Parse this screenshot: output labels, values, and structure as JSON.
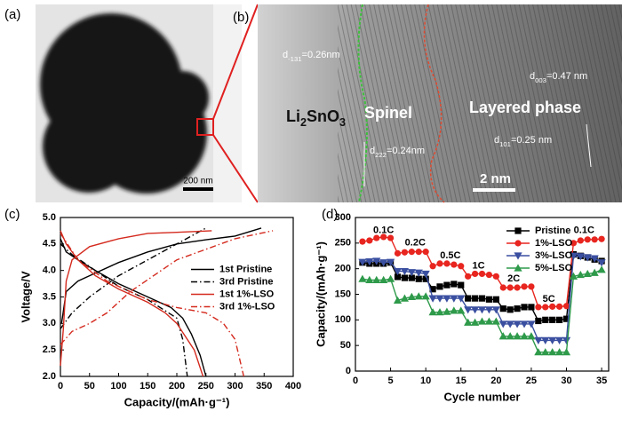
{
  "panels": {
    "a": {
      "label": "(a)",
      "scale_bar": "200 nm"
    },
    "b": {
      "label": "(b)",
      "scale_bar": "2 nm",
      "phases": {
        "li2sno3": [
          "Li",
          "2",
          "SnO",
          "3"
        ],
        "spinel": "Spinel",
        "layered": "Layered phase"
      },
      "spacings": {
        "d131": [
          "d",
          "-131",
          "=0.26nm"
        ],
        "d003": [
          "d",
          "003",
          "=0.47 nm"
        ],
        "d222": [
          "d",
          "222",
          "=0.24nm"
        ],
        "d101": [
          "d",
          "101",
          "=0.25 nm"
        ]
      }
    }
  },
  "chart_data": [
    {
      "type": "line",
      "panel_label": "(c)",
      "x_label": "Capacity/(mAh·g⁻¹)",
      "y_label": "Voltage/V",
      "xlim": [
        0,
        400
      ],
      "xticks": [
        0,
        50,
        100,
        150,
        200,
        250,
        300,
        350,
        400
      ],
      "ylim": [
        2,
        5
      ],
      "yticks": [
        {
          "value": 2,
          "label": "2.0"
        },
        {
          "value": 2.5,
          "label": "2.5"
        },
        {
          "value": 3,
          "label": "3.0"
        },
        {
          "value": 3.5,
          "label": "3.5"
        },
        {
          "value": 4,
          "label": "4.0"
        },
        {
          "value": 4.5,
          "label": "4.5"
        },
        {
          "value": 5,
          "label": "5.0"
        }
      ],
      "grid": false,
      "legend": "center right",
      "series": [
        {
          "name": "1st Pristine",
          "color": "#000000",
          "dash": "solid",
          "x": [
            2,
            10,
            30,
            60,
            100,
            150,
            200,
            250,
            300,
            345,
            null,
            0,
            10,
            30,
            60,
            100,
            150,
            190,
            210,
            225,
            240,
            250
          ],
          "values": [
            3.0,
            3.6,
            3.8,
            3.95,
            4.15,
            4.35,
            4.5,
            4.58,
            4.65,
            4.8,
            null,
            4.6,
            4.35,
            4.2,
            4.0,
            3.75,
            3.5,
            3.3,
            3.1,
            2.8,
            2.4,
            2.0
          ]
        },
        {
          "name": "3rd Pristine",
          "color": "#000000",
          "dash": "dashdot",
          "x": [
            0,
            20,
            50,
            100,
            150,
            200,
            250,
            null,
            0,
            20,
            60,
            100,
            150,
            200,
            210,
            218
          ],
          "values": [
            2.9,
            3.2,
            3.5,
            3.9,
            4.2,
            4.5,
            4.8,
            null,
            4.5,
            4.3,
            4.0,
            3.7,
            3.45,
            3.1,
            2.7,
            2.0
          ]
        },
        {
          "name": "1st 1%-LSO",
          "color": "#d42a1e",
          "dash": "solid",
          "x": [
            0,
            5,
            10,
            20,
            50,
            100,
            150,
            200,
            260,
            null,
            0,
            10,
            30,
            60,
            100,
            150,
            180,
            200,
            230,
            245
          ],
          "values": [
            2.2,
            2.9,
            3.8,
            4.2,
            4.45,
            4.6,
            4.7,
            4.72,
            4.75,
            null,
            4.75,
            4.5,
            4.2,
            3.9,
            3.65,
            3.4,
            3.2,
            3.0,
            2.5,
            2.0
          ]
        },
        {
          "name": "3rd 1%-LSO",
          "color": "#d42a1e",
          "dash": "dashdot",
          "x": [
            0,
            20,
            50,
            80,
            120,
            200,
            300,
            365,
            null,
            0,
            30,
            80,
            150,
            200,
            250,
            280,
            300,
            315
          ],
          "values": [
            2.6,
            2.85,
            3.0,
            3.2,
            3.6,
            4.2,
            4.6,
            4.75,
            null,
            4.7,
            4.2,
            3.8,
            3.45,
            3.3,
            3.2,
            3.0,
            2.7,
            2.0
          ]
        }
      ]
    },
    {
      "type": "line",
      "panel_label": "(d)",
      "x_label": "Cycle number",
      "y_label": "Capacity/(mAh·g⁻¹)",
      "xlim": [
        0,
        36
      ],
      "xticks": [
        0,
        5,
        10,
        15,
        20,
        25,
        30,
        35
      ],
      "ylim": [
        0,
        300
      ],
      "yticks": [
        0,
        50,
        100,
        150,
        200,
        250,
        300
      ],
      "grid": false,
      "legend": "upper right",
      "annotations": [
        "0.1C",
        "0.2C",
        "0.5C",
        "1C",
        "2C",
        "5C",
        "0.1C"
      ],
      "x": [
        1,
        2,
        3,
        4,
        5,
        6,
        7,
        8,
        9,
        10,
        11,
        12,
        13,
        14,
        15,
        16,
        17,
        18,
        19,
        20,
        21,
        22,
        23,
        24,
        25,
        26,
        27,
        28,
        29,
        30,
        31,
        32,
        33,
        34,
        35
      ],
      "series": [
        {
          "name": "Pristine",
          "color": "#000000",
          "marker": "square",
          "values": [
            212,
            210,
            210,
            210,
            212,
            184,
            182,
            182,
            180,
            180,
            160,
            165,
            168,
            170,
            168,
            142,
            142,
            142,
            140,
            140,
            122,
            120,
            122,
            125,
            125,
            98,
            100,
            100,
            100,
            102,
            228,
            225,
            222,
            218,
            215
          ]
        },
        {
          "name": "1%-LSO",
          "color": "#e8251f",
          "marker": "circle",
          "values": [
            253,
            255,
            260,
            262,
            260,
            230,
            232,
            233,
            233,
            233,
            205,
            210,
            210,
            208,
            205,
            185,
            190,
            190,
            188,
            185,
            163,
            163,
            163,
            165,
            165,
            125,
            125,
            126,
            126,
            127,
            250,
            255,
            257,
            257,
            258
          ]
        },
        {
          "name": "3%-LSO",
          "color": "#3a4fa0",
          "marker": "triangle-down",
          "values": [
            213,
            214,
            215,
            212,
            213,
            195,
            195,
            193,
            192,
            190,
            142,
            142,
            142,
            142,
            142,
            120,
            120,
            120,
            120,
            120,
            92,
            92,
            92,
            92,
            92,
            60,
            60,
            60,
            60,
            60,
            225,
            224,
            222,
            220,
            212
          ]
        },
        {
          "name": "5%-LSO",
          "color": "#2e9a4a",
          "marker": "triangle-up",
          "values": [
            180,
            178,
            178,
            178,
            180,
            138,
            142,
            145,
            146,
            146,
            115,
            115,
            116,
            118,
            118,
            95,
            95,
            97,
            97,
            97,
            68,
            68,
            68,
            68,
            68,
            37,
            37,
            37,
            37,
            37,
            185,
            188,
            190,
            192,
            198
          ]
        }
      ]
    }
  ]
}
